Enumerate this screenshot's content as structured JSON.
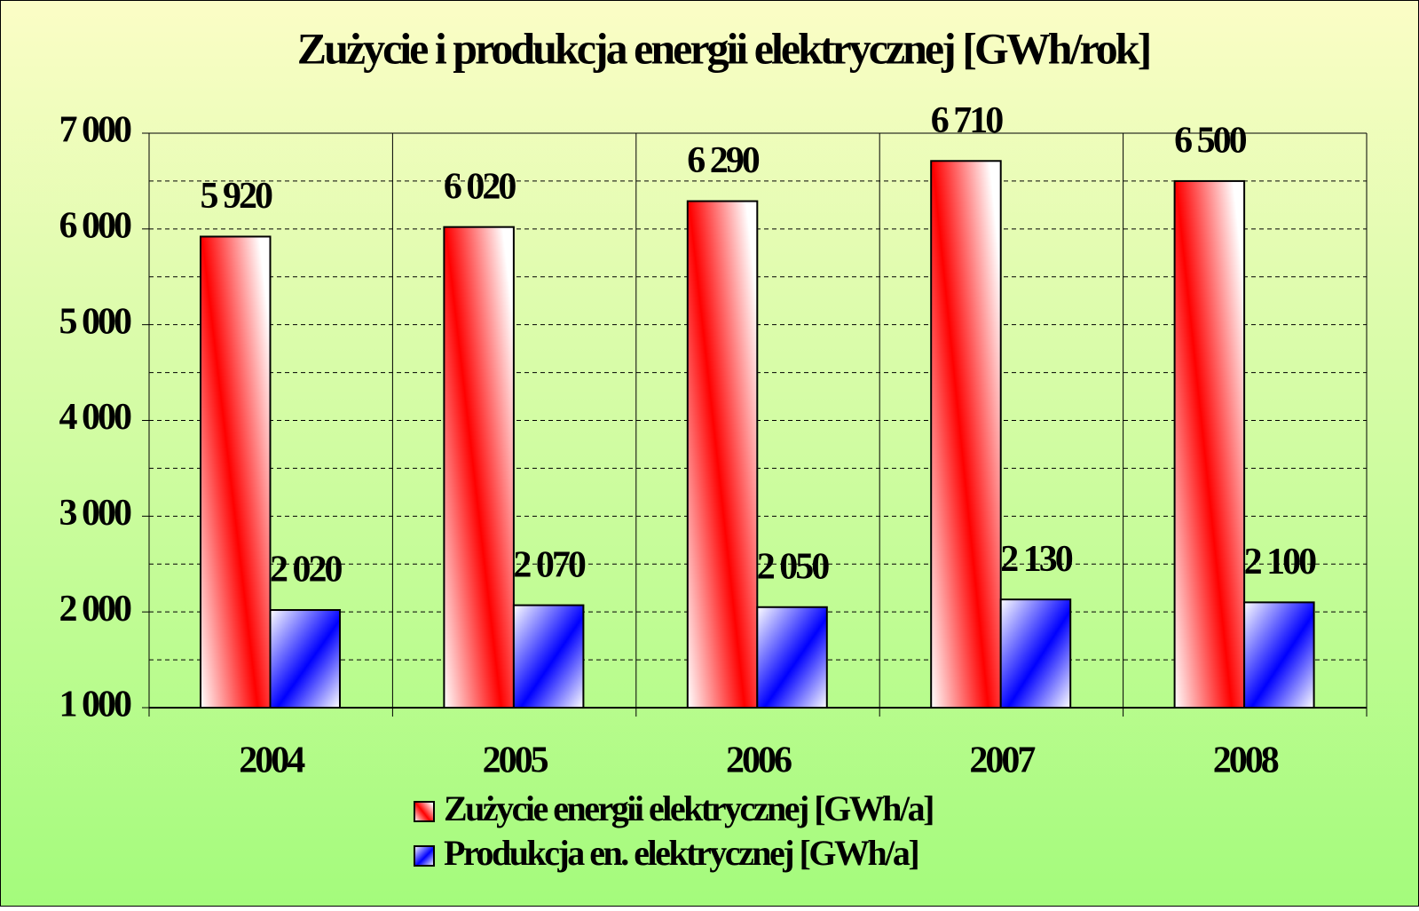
{
  "chart_data": {
    "type": "bar",
    "title": "Zużycie i produkcja energii elektrycznej [GWh/rok]",
    "categories": [
      "2004",
      "2005",
      "2006",
      "2007",
      "2008"
    ],
    "series": [
      {
        "name": "Zużycie energii elektrycznej [GWh/a]",
        "color": "#ff0000",
        "values": [
          5920,
          6020,
          6290,
          6710,
          6500
        ],
        "value_labels": [
          "5 920",
          "6 020",
          "6 290",
          "6 710",
          "6 500"
        ]
      },
      {
        "name": "Produkcja en. elektrycznej  [GWh/a]",
        "color": "#0000ff",
        "values": [
          2020,
          2070,
          2050,
          2130,
          2100
        ],
        "value_labels": [
          "2 020",
          "2 070",
          "2 050",
          "2 130",
          "2 100"
        ]
      }
    ],
    "ylim": [
      1000,
      7000
    ],
    "yticks": [
      {
        "value": 1000,
        "label": "1 000"
      },
      {
        "value": 2000,
        "label": "2 000"
      },
      {
        "value": 3000,
        "label": "3 000"
      },
      {
        "value": 4000,
        "label": "4 000"
      },
      {
        "value": 5000,
        "label": "5 000"
      },
      {
        "value": 6000,
        "label": "6 000"
      },
      {
        "value": 7000,
        "label": "7 000"
      }
    ],
    "minor_yticks": [
      1500,
      2500,
      3500,
      4500,
      5500,
      6500
    ],
    "grid": true,
    "legend": "bottom"
  }
}
